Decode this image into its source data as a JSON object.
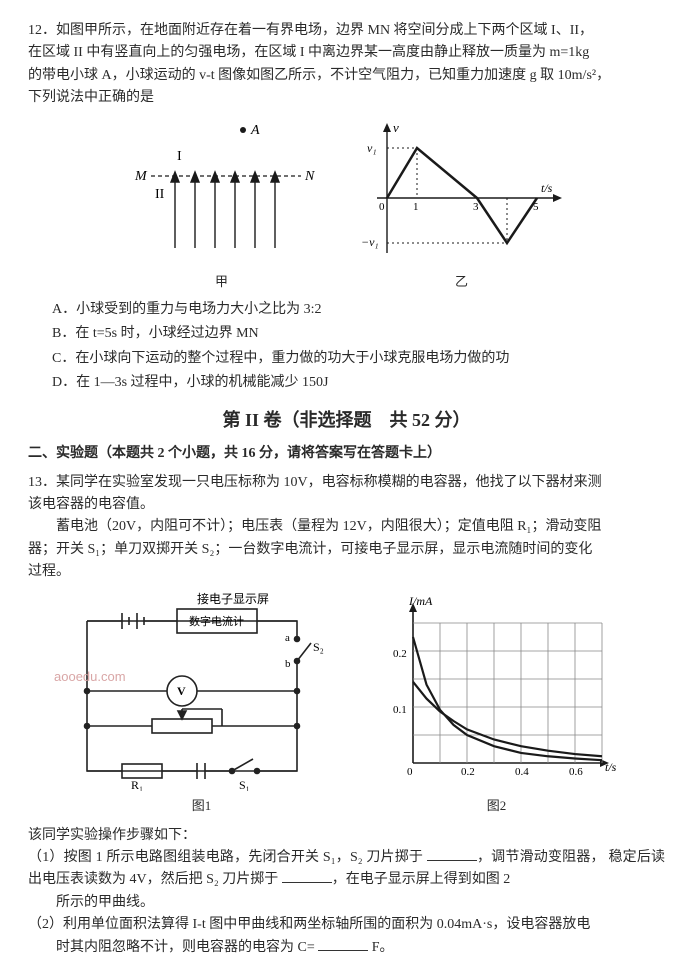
{
  "q12": {
    "num": "12．",
    "line1": "如图甲所示，在地面附近存在着一有界电场，边界 MN 将空间分成上下两个区域 I、II，",
    "line2": "在区域 II 中有竖直向上的匀强电场，在区域 I 中离边界某一高度由静止释放一质量为 m=1kg",
    "line3": "的带电小球 A，小球运动的 v-t 图像如图乙所示，不计空气阻力，已知重力加速度 g 取 10m/s²，",
    "line4": "下列说法中正确的是",
    "diagram1": {
      "dot_label": "A",
      "region1_label": "I",
      "region2_label": "II",
      "left_label": "M",
      "right_label": "N",
      "caption": "甲",
      "arrow_color": "#1a1a1a",
      "dash_color": "#1a1a1a"
    },
    "diagram2": {
      "y_label": "v",
      "x_label": "t/s",
      "pos_peak_label": "v₁",
      "neg_peak_label": "−v₁",
      "x_ticks": [
        "0",
        "1",
        "3",
        "5"
      ],
      "caption": "乙",
      "line_color": "#1a1a1a",
      "line_width": 2.5
    },
    "options": {
      "A": "A．小球受到的重力与电场力大小之比为 3:2",
      "B": "B．在 t=5s 时，小球经过边界 MN",
      "C": "C．在小球向下运动的整个过程中，重力做的功大于小球克服电场力做的功",
      "D": "D．在 1—3s 过程中，小球的机械能减少 150J"
    }
  },
  "section": {
    "title": "第 II 卷（非选择题　共 52 分）"
  },
  "part2_head": "二、实验题（本题共 2 个小题，共 16 分，请将答案写在答题卡上）",
  "q13": {
    "num": "13．",
    "line1": "某同学在实验室发现一只电压标称为 10V，电容标称模糊的电容器，他找了以下器材来测",
    "line2": "该电容器的电容值。",
    "line3": "　　蓄电池（20V，内阻可不计）；电压表（量程为 12V，内阻很大）；定值电阻 R₁；滑动变阻",
    "line4": "器；开关 S₁；单刀双掷开关 S₂；一台数字电流计，可接电子显示屏，显示电流随时间的变化",
    "line5": "过程。",
    "circuit": {
      "label_top": "接电子显示屏",
      "meter_label": "数字电流计",
      "s2_label": "S₂",
      "s2_a": "a",
      "s2_b": "b",
      "v_label": "V",
      "r1_label": "R₁",
      "s1_label": "S₁",
      "caption": "图1",
      "line_color": "#222",
      "line_width": 1.6
    },
    "graph": {
      "y_label": "I/mA",
      "x_label": "t/s",
      "y_ticks": [
        "0.1",
        "0.2"
      ],
      "x_ticks": [
        "0",
        "0.2",
        "0.4",
        "0.6"
      ],
      "caption": "图2",
      "grid_color": "#888",
      "curve_color": "#1a1a1a",
      "curve_width": 2.2,
      "curves": [
        [
          [
            0,
            0.225
          ],
          [
            0.05,
            0.14
          ],
          [
            0.1,
            0.095
          ],
          [
            0.15,
            0.068
          ],
          [
            0.2,
            0.05
          ],
          [
            0.3,
            0.03
          ],
          [
            0.4,
            0.018
          ],
          [
            0.5,
            0.012
          ],
          [
            0.6,
            0.008
          ],
          [
            0.7,
            0.005
          ]
        ],
        [
          [
            0,
            0.145
          ],
          [
            0.05,
            0.115
          ],
          [
            0.1,
            0.092
          ],
          [
            0.15,
            0.075
          ],
          [
            0.2,
            0.06
          ],
          [
            0.3,
            0.042
          ],
          [
            0.4,
            0.03
          ],
          [
            0.5,
            0.022
          ],
          [
            0.6,
            0.016
          ],
          [
            0.7,
            0.012
          ]
        ]
      ]
    },
    "step_intro": "该同学实验操作步骤如下：",
    "step1a": "（1）按图 1 所示电路图组装电路，先闭合开关 S₁，S₂ 刀片掷于 ",
    "step1b": "，调节滑动变阻器，",
    "step1c": "稳定后读出电压表读数为 4V，然后把 S₂ 刀片掷于 ",
    "step1d": "，在电子显示屏上得到如图 2",
    "step1e": "所示的甲曲线。",
    "step2a": "（2）利用单位面积法算得 I-t 图中甲曲线和两坐标轴所围的面积为 0.04mA·s，设电容器放电",
    "step2b": "时其内阻忽略不计，则电容器的电容为 C= ",
    "step2c": " F。"
  },
  "watermark": "aooedu.com",
  "colors": {
    "text": "#2a2a2a",
    "bg": "#ffffff"
  }
}
